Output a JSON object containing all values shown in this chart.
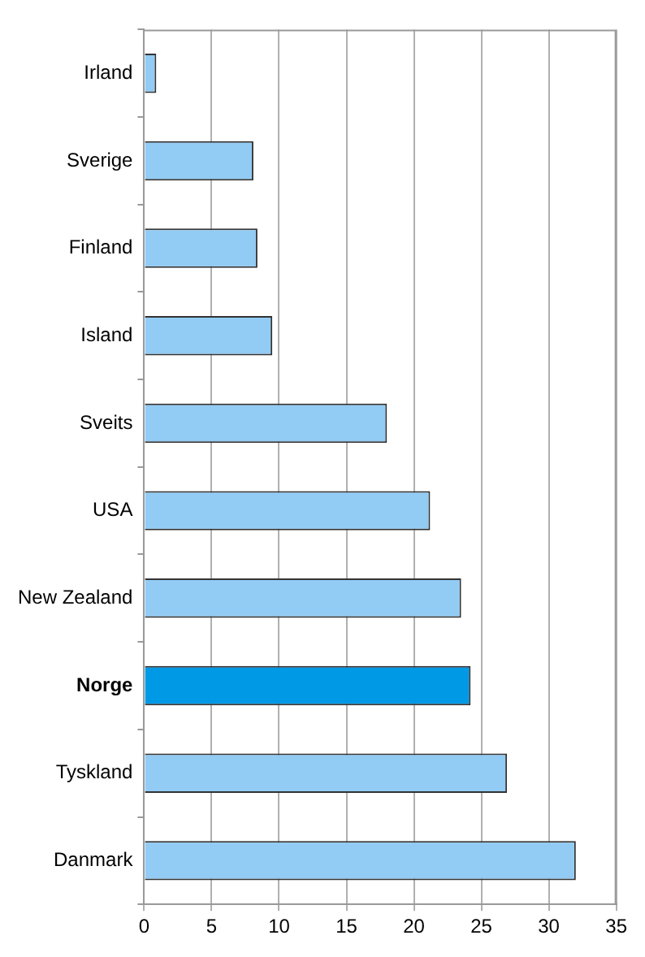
{
  "chart_data": {
    "type": "bar",
    "orientation": "horizontal",
    "categories": [
      "Irland",
      "Sverige",
      "Finland",
      "Island",
      "Sveits",
      "USA",
      "New Zealand",
      "Norge",
      "Tyskland",
      "Danmark"
    ],
    "values": [
      0.9,
      8.1,
      8.4,
      9.5,
      18.0,
      21.2,
      23.5,
      24.2,
      26.9,
      32.0
    ],
    "colors": [
      "#92cbf3",
      "#92cbf3",
      "#92cbf3",
      "#92cbf3",
      "#92cbf3",
      "#92cbf3",
      "#92cbf3",
      "#0099e6",
      "#92cbf3",
      "#92cbf3"
    ],
    "xlim": [
      0,
      35
    ],
    "xticks": [
      0,
      5,
      10,
      15,
      20,
      25,
      30,
      35
    ],
    "grid": "x",
    "legend": false
  }
}
